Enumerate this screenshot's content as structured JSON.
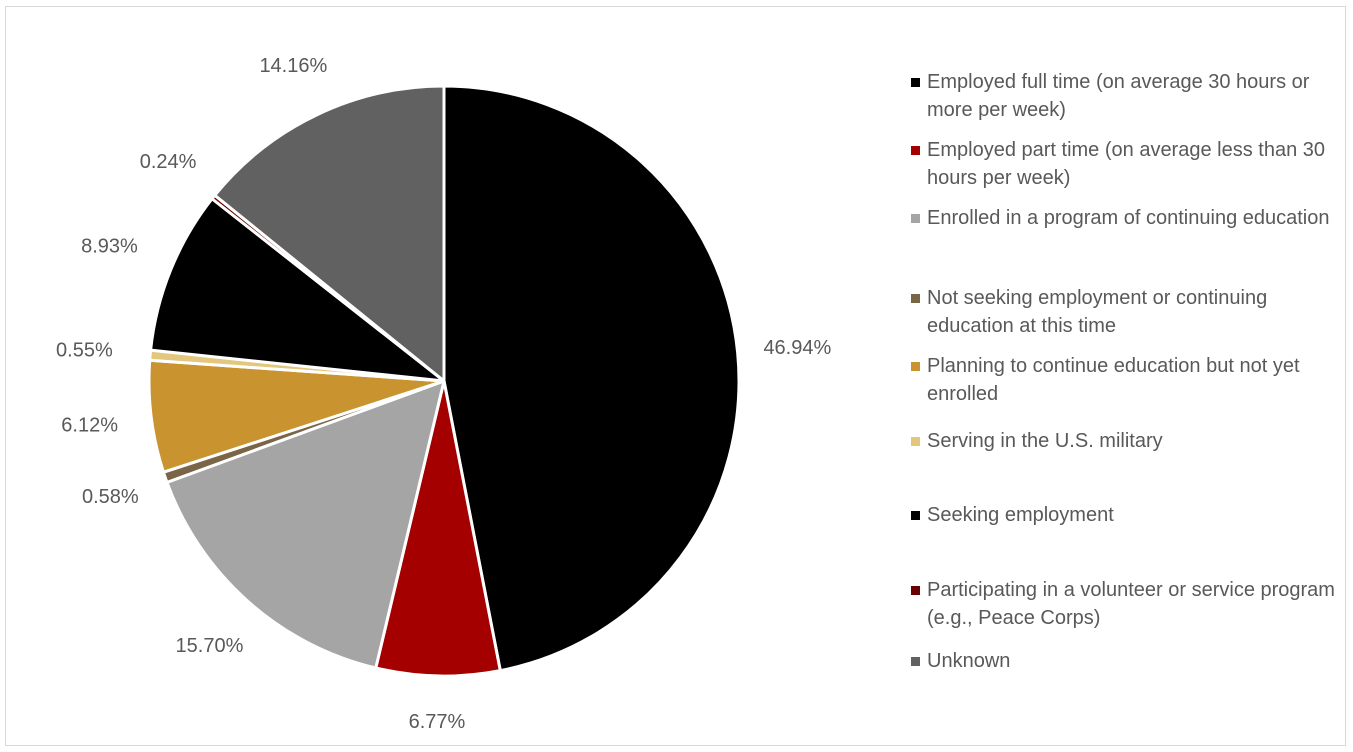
{
  "chart_data": {
    "type": "pie",
    "title": "",
    "slices": [
      {
        "label": "Employed full time (on average 30 hours or more per week)",
        "value": 46.94,
        "display": "46.94%",
        "color": "#000000"
      },
      {
        "label": "Employed part time (on average less than 30 hours per week)",
        "value": 6.77,
        "display": "6.77%",
        "color": "#a50000"
      },
      {
        "label": "Enrolled in a program of continuing education",
        "value": 15.7,
        "display": "15.70%",
        "color": "#a5a5a5"
      },
      {
        "label": "Not seeking employment or continuing education at this time",
        "value": 0.58,
        "display": "0.58%",
        "color": "#7a6546"
      },
      {
        "label": "Planning to continue education  but not yet enrolled",
        "value": 6.12,
        "display": "6.12%",
        "color": "#c9932f"
      },
      {
        "label": "Serving in the U.S. military",
        "value": 0.55,
        "display": "0.55%",
        "color": "#e3c77f"
      },
      {
        "label": "Seeking employment",
        "value": 8.93,
        "display": "8.93%",
        "color": "#000000"
      },
      {
        "label": "Participating in a volunteer or service program (e.g., Peace Corps)",
        "value": 0.24,
        "display": "0.24%",
        "color": "#6b0000"
      },
      {
        "label": "Unknown",
        "value": 14.16,
        "display": "14.16%",
        "color": "#616161"
      }
    ],
    "legend_position": "right"
  }
}
